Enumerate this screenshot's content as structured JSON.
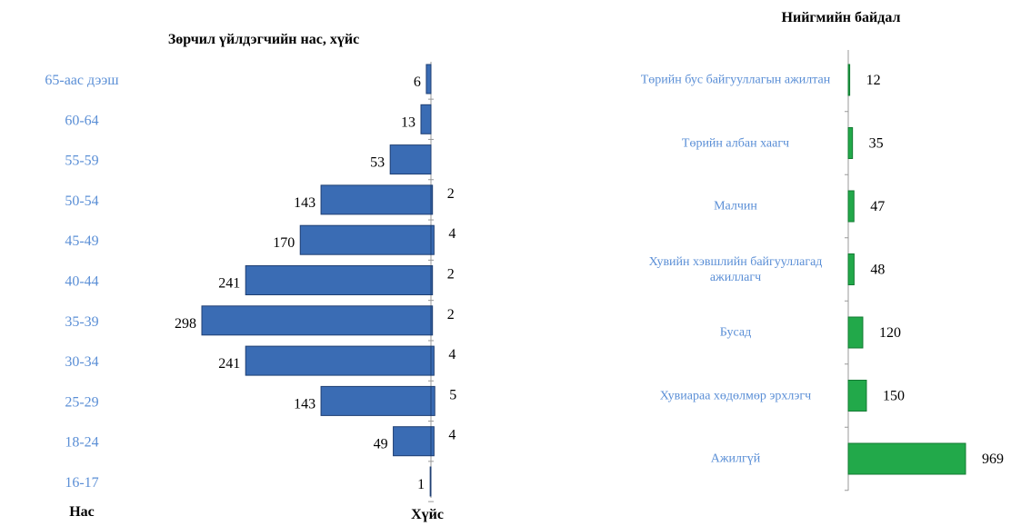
{
  "chart_data": [
    {
      "type": "pyramid",
      "title": "Зөрчил үйлдэгчийн нас, хүйс",
      "categories": [
        "65-аас дээш",
        "60-64",
        "55-59",
        "50-54",
        "45-49",
        "40-44",
        "35-39",
        "30-34",
        "25-29",
        "18-24",
        "16-17"
      ],
      "series": [
        {
          "color": "#3a6cb4",
          "values": [
            6,
            13,
            53,
            143,
            170,
            241,
            298,
            241,
            143,
            49,
            1
          ]
        },
        {
          "color": "#3a6cb4",
          "values": [
            null,
            null,
            null,
            2,
            4,
            2,
            2,
            4,
            5,
            4,
            null
          ]
        }
      ],
      "y_label": "Нас",
      "x_label": "Хүйс"
    },
    {
      "type": "hbar",
      "title": "Нийгмийн байдал",
      "categories": [
        "Төрийн бус байгууллагын ажилтан",
        "Төрийн албан хаагч",
        "Малчин",
        "Хувийн хэвшлийн байгууллагад ажиллагч",
        "Бусад",
        "Хувиараа хөдөлмөр эрхлэгч",
        "Ажилгүй"
      ],
      "values": [
        12,
        35,
        47,
        48,
        120,
        150,
        969
      ],
      "color": "#22a94a"
    }
  ]
}
